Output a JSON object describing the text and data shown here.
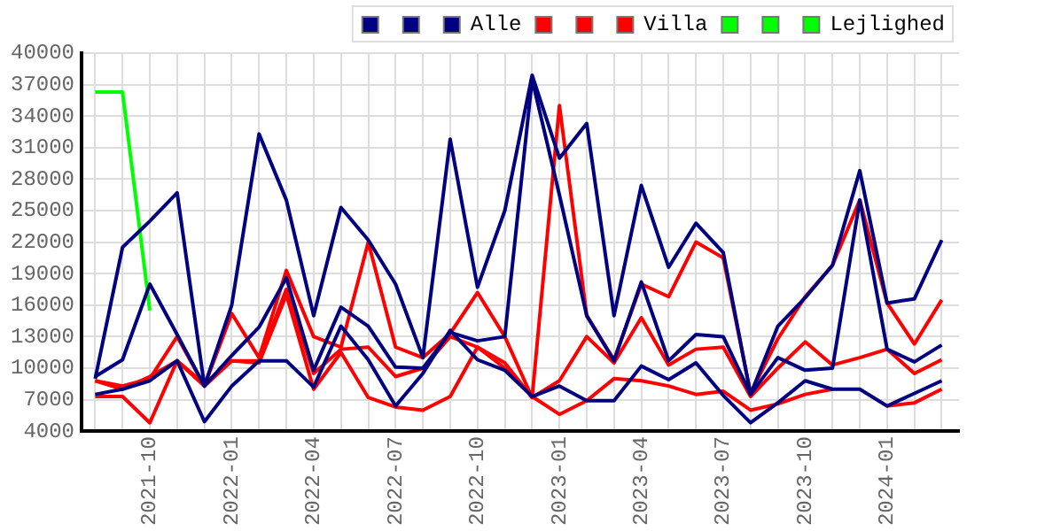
{
  "chart_data": {
    "type": "line",
    "x": [
      "2021-08",
      "2021-09",
      "2021-10",
      "2021-11",
      "2021-12",
      "2022-01",
      "2022-02",
      "2022-03",
      "2022-04",
      "2022-05",
      "2022-06",
      "2022-07",
      "2022-08",
      "2022-09",
      "2022-10",
      "2022-11",
      "2022-12",
      "2023-01",
      "2023-02",
      "2023-03",
      "2023-04",
      "2023-05",
      "2023-06",
      "2023-07",
      "2023-08",
      "2023-09",
      "2023-10",
      "2023-11",
      "2023-12",
      "2024-01",
      "2024-02",
      "2024-03"
    ],
    "series": [
      {
        "color": "#000080",
        "values": [
          9000,
          21500,
          24000,
          26700,
          8300,
          16000,
          32300,
          26000,
          15000,
          25300,
          22200,
          18000,
          11000,
          31800,
          17700,
          25000,
          37900,
          30000,
          33300,
          15000,
          27400,
          19600,
          23800,
          21000,
          7500,
          14000,
          16700,
          19800,
          28800,
          16200,
          16600,
          22200
        ]
      },
      {
        "color": "#000080",
        "values": [
          9200,
          10800,
          18000,
          13200,
          8300,
          11200,
          13900,
          18600,
          9800,
          15800,
          14000,
          10100,
          10000,
          13400,
          12600,
          13000,
          37500,
          26500,
          15000,
          10700,
          18200,
          10700,
          13200,
          13000,
          7500,
          11000,
          9800,
          10000,
          26000,
          11800,
          10600,
          12200
        ]
      },
      {
        "name": "Alle",
        "color": "#000080",
        "values": [
          7500,
          8000,
          8800,
          10700,
          4900,
          8300,
          10700,
          10700,
          8200,
          14000,
          10800,
          6400,
          9500,
          13600,
          10800,
          9800,
          7300,
          8300,
          6900,
          6900,
          10200,
          8900,
          10500,
          7400,
          4800,
          6700,
          8800,
          8000,
          8000,
          6400,
          7600,
          8800
        ]
      },
      {
        "color": "#ff0000",
        "values": [
          8800,
          8300,
          9000,
          13000,
          8300,
          15200,
          11000,
          19300,
          13000,
          12000,
          22000,
          12000,
          11000,
          13300,
          17200,
          13000,
          7200,
          35000,
          15000,
          10800,
          18000,
          16800,
          22000,
          20500,
          7600,
          12800,
          16800,
          19800,
          26000,
          16200,
          12300,
          16500
        ]
      },
      {
        "color": "#ff0000",
        "values": [
          8800,
          8000,
          9200,
          10700,
          8500,
          10700,
          10700,
          17500,
          9500,
          11800,
          12000,
          9200,
          10000,
          13000,
          12000,
          10500,
          7200,
          8800,
          13000,
          10500,
          14800,
          10300,
          11800,
          12000,
          7300,
          10000,
          12500,
          10300,
          11000,
          11800,
          9500,
          10800
        ]
      },
      {
        "name": "Villa",
        "color": "#ff0000",
        "values": [
          7300,
          7300,
          4800,
          10700,
          8300,
          10700,
          10500,
          17000,
          8000,
          11500,
          7200,
          6300,
          6000,
          7300,
          12000,
          10000,
          7300,
          5600,
          6900,
          9000,
          8800,
          8300,
          7500,
          7800,
          6000,
          6600,
          7500,
          8000,
          null,
          6400,
          6700,
          8000
        ]
      },
      {
        "color": "#00ff00",
        "values": [
          null,
          null,
          null,
          null,
          null,
          null,
          null,
          null,
          null,
          null,
          null,
          null,
          null,
          null,
          null,
          null,
          null,
          null,
          null,
          null,
          null,
          null,
          null,
          null,
          null,
          null,
          null,
          null,
          null,
          null,
          null,
          null
        ]
      },
      {
        "color": "#00ff00",
        "values": [
          null,
          null,
          null,
          null,
          null,
          null,
          null,
          null,
          null,
          null,
          null,
          null,
          null,
          null,
          null,
          null,
          null,
          null,
          null,
          null,
          null,
          null,
          null,
          null,
          null,
          null,
          null,
          null,
          null,
          null,
          null,
          null
        ]
      },
      {
        "name": "Lejlighed",
        "color": "#00ff00",
        "values": [
          36300,
          36300,
          15500,
          null,
          null,
          null,
          null,
          null,
          null,
          null,
          null,
          null,
          null,
          null,
          null,
          null,
          null,
          null,
          null,
          null,
          null,
          null,
          null,
          null,
          null,
          null,
          null,
          null,
          null,
          null,
          null,
          null
        ]
      }
    ],
    "xlim": [
      "2021-07-16",
      "2024-03-20"
    ],
    "xticks": [
      {
        "value": "2021-08",
        "label": null
      },
      {
        "value": "2021-09",
        "label": null
      },
      "2021-10",
      {
        "value": "2021-11",
        "label": null
      },
      {
        "value": "2021-12",
        "label": null
      },
      "2022-01",
      {
        "value": "2022-02",
        "label": null
      },
      {
        "value": "2022-03",
        "label": null
      },
      "2022-04",
      {
        "value": "2022-05",
        "label": null
      },
      {
        "value": "2022-06",
        "label": null
      },
      "2022-07",
      {
        "value": "2022-08",
        "label": null
      },
      {
        "value": "2022-09",
        "label": null
      },
      "2022-10",
      {
        "value": "2022-11",
        "label": null
      },
      {
        "value": "2022-12",
        "label": null
      },
      "2023-01",
      {
        "value": "2023-02",
        "label": null
      },
      {
        "value": "2023-03",
        "label": null
      },
      "2023-04",
      {
        "value": "2023-05",
        "label": null
      },
      {
        "value": "2023-06",
        "label": null
      },
      "2023-07",
      {
        "value": "2023-08",
        "label": null
      },
      {
        "value": "2023-09",
        "label": null
      },
      "2023-10",
      {
        "value": "2023-11",
        "label": null
      },
      {
        "value": "2023-12",
        "label": null
      },
      "2024-01",
      {
        "value": "2024-02",
        "label": null
      },
      {
        "value": "2024-03",
        "label": null
      }
    ],
    "ylim": [
      4000,
      40000
    ],
    "yticks": [
      4000,
      7000,
      10000,
      13000,
      16000,
      19000,
      22000,
      25000,
      28000,
      31000,
      34000,
      37000,
      40000
    ],
    "grid": true,
    "legend": "top right",
    "marker": "none",
    "line_style": "solid"
  }
}
